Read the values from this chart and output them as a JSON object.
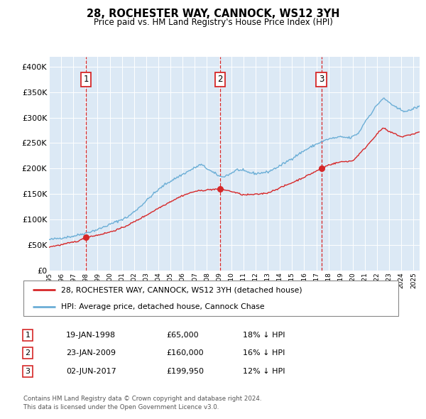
{
  "title": "28, ROCHESTER WAY, CANNOCK, WS12 3YH",
  "subtitle": "Price paid vs. HM Land Registry's House Price Index (HPI)",
  "ylabel_ticks": [
    "£0",
    "£50K",
    "£100K",
    "£150K",
    "£200K",
    "£250K",
    "£300K",
    "£350K",
    "£400K"
  ],
  "ytick_vals": [
    0,
    50000,
    100000,
    150000,
    200000,
    250000,
    300000,
    350000,
    400000
  ],
  "ylim": [
    0,
    420000
  ],
  "xlim_start": 1995.0,
  "xlim_end": 2025.5,
  "sale_dates": [
    1998.05,
    2009.07,
    2017.42
  ],
  "sale_prices": [
    65000,
    160000,
    199950
  ],
  "sale_labels": [
    "1",
    "2",
    "3"
  ],
  "sale_info": [
    {
      "num": "1",
      "date": "19-JAN-1998",
      "price": "£65,000",
      "hpi": "18% ↓ HPI"
    },
    {
      "num": "2",
      "date": "23-JAN-2009",
      "price": "£160,000",
      "hpi": "16% ↓ HPI"
    },
    {
      "num": "3",
      "date": "02-JUN-2017",
      "price": "£199,950",
      "hpi": "12% ↓ HPI"
    }
  ],
  "legend_line1": "28, ROCHESTER WAY, CANNOCK, WS12 3YH (detached house)",
  "legend_line2": "HPI: Average price, detached house, Cannock Chase",
  "footer1": "Contains HM Land Registry data © Crown copyright and database right 2024.",
  "footer2": "This data is licensed under the Open Government Licence v3.0.",
  "hpi_color": "#6baed6",
  "sale_color": "#d62728",
  "plot_bg_color": "#dce9f5",
  "grid_color": "#ffffff",
  "vline_color": "#d62728",
  "box_color": "#d62728"
}
